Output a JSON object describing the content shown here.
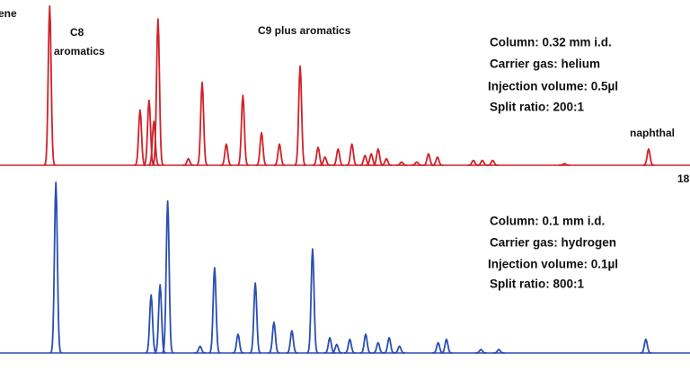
{
  "chart_data": [
    {
      "type": "chromatogram",
      "color": "#d0222a",
      "xlim": [
        0,
        100
      ],
      "ylim": [
        0,
        100
      ],
      "x": [
        7.2,
        20.3,
        21.6,
        22.3,
        22.9,
        27.3,
        29.3,
        32.8,
        35.2,
        37.9,
        40.5,
        43.5,
        46.1,
        47.1,
        49,
        51,
        52.9,
        53.8,
        54.8,
        56,
        58.2,
        60.4,
        62.1,
        63.4,
        68.6,
        69.9,
        71.4,
        81.8,
        94
      ],
      "values": [
        98,
        34,
        40,
        27,
        90,
        4,
        51,
        13,
        43,
        20,
        13,
        61,
        11,
        5,
        10,
        13,
        6,
        7,
        10,
        4,
        2,
        2,
        7,
        5,
        3,
        3,
        3,
        1,
        10
      ],
      "annotations": [
        "ene",
        "C8",
        "aromatics",
        "C9  plus aromatics",
        "naphthal",
        "18",
        "Column: 0.32 mm  i.d.",
        "Carrier gas: helium",
        "Injection volume: 0.5µl",
        "Split ratio: 200:1"
      ]
    },
    {
      "type": "chromatogram",
      "color": "#2a4fb0",
      "xlim": [
        0,
        100
      ],
      "ylim": [
        0,
        100
      ],
      "x": [
        8.1,
        21.9,
        23.2,
        24.3,
        29,
        31.1,
        34.5,
        37,
        39.7,
        42.3,
        45.3,
        47.8,
        48.8,
        50.7,
        53,
        54.8,
        56.4,
        57.9,
        63.5,
        64.7,
        69.7,
        72.3,
        93.6
      ],
      "values": [
        100,
        34,
        40,
        89,
        4,
        50,
        11,
        41,
        18,
        13,
        61,
        9,
        5,
        8,
        11,
        6,
        9,
        4,
        6,
        8,
        2,
        2,
        8
      ],
      "annotations": [
        "Column: 0.1 mm  i.d.",
        "Carrier gas: hydrogen",
        "Injection volume: 0.1µl",
        "Split ratio: 800:1"
      ]
    }
  ]
}
